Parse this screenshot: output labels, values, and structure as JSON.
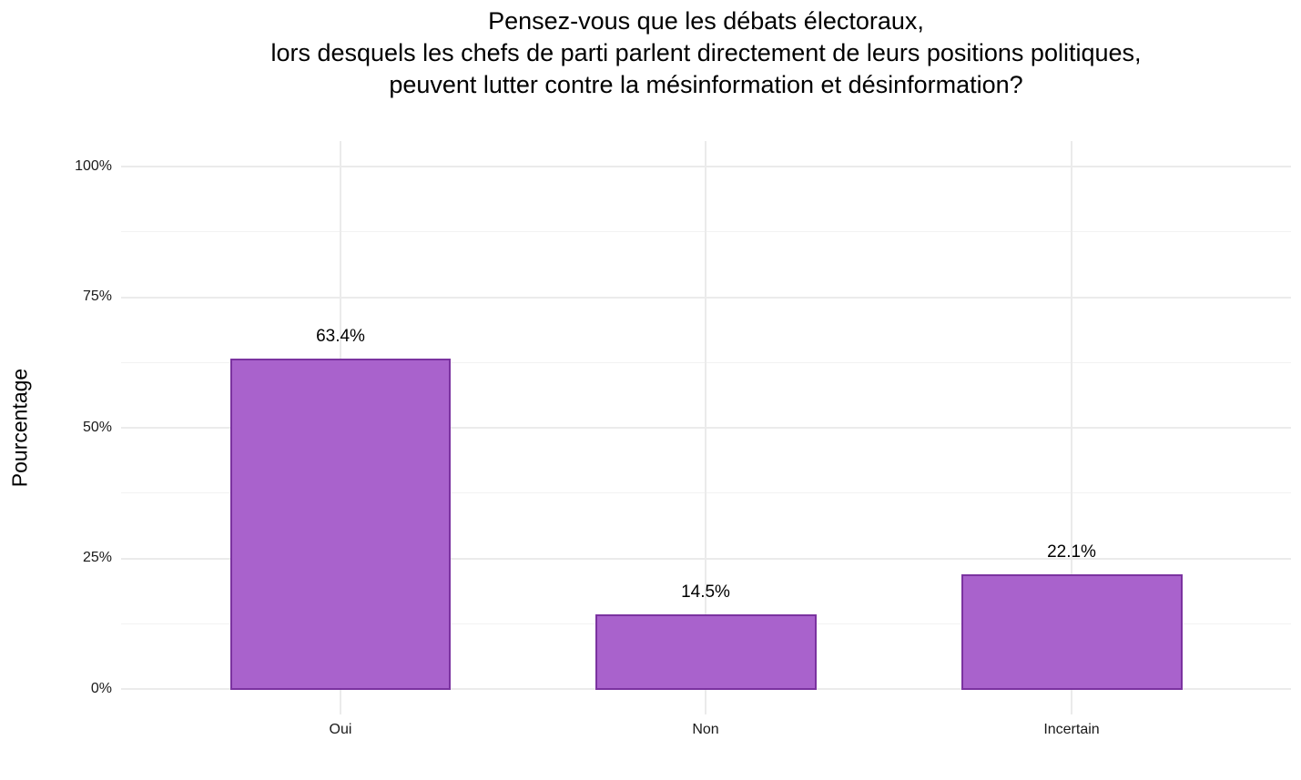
{
  "title_lines": [
    "Pensez-vous que les débats électoraux,",
    "lors desquels les chefs de parti parlent directement de leurs positions politiques,",
    "peuvent lutter contre la mésinformation et désinformation?"
  ],
  "axis": {
    "ylabel": "Pourcentage",
    "yticks": [
      "0%",
      "25%",
      "50%",
      "75%",
      "100%"
    ],
    "xticks": [
      "Oui",
      "Non",
      "Incertain"
    ]
  },
  "bars": [
    {
      "category": "Oui",
      "value": 63.4,
      "label": "63.4%"
    },
    {
      "category": "Non",
      "value": 14.5,
      "label": "14.5%"
    },
    {
      "category": "Incertain",
      "value": 22.1,
      "label": "22.1%"
    }
  ],
  "colors": {
    "bar_fill": "#a962cc",
    "bar_border": "#7b33a0",
    "grid": "#ebebeb"
  },
  "chart_data": {
    "type": "bar",
    "title": "Pensez-vous que les débats électoraux, lors desquels les chefs de parti parlent directement de leurs positions politiques, peuvent lutter contre la mésinformation et désinformation?",
    "categories": [
      "Oui",
      "Non",
      "Incertain"
    ],
    "values": [
      63.4,
      14.5,
      22.1
    ],
    "data_labels": [
      "63.4%",
      "14.5%",
      "22.1%"
    ],
    "xlabel": "",
    "ylabel": "Pourcentage",
    "ylim": [
      0,
      100
    ],
    "yticks": [
      0,
      25,
      50,
      75,
      100
    ],
    "ytick_labels": [
      "0%",
      "25%",
      "50%",
      "75%",
      "100%"
    ],
    "grid": true,
    "legend": null
  }
}
